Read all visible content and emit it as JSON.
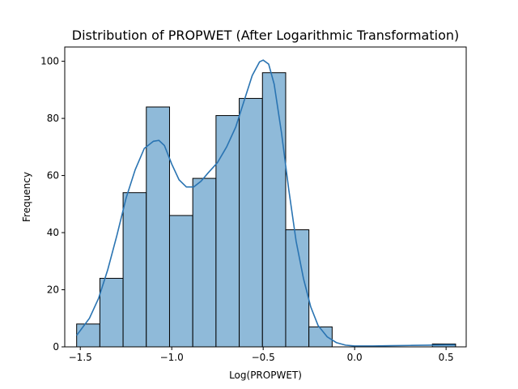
{
  "chart_data": {
    "type": "histogram",
    "title": "Distribution of PROPWET (After Logarithmic Transformation)",
    "xlabel": "Log(PROPWET)",
    "ylabel": "Frequency",
    "xlim": [
      -1.585,
      0.61
    ],
    "ylim": [
      0,
      105
    ],
    "x_ticks": [
      -1.5,
      -1.0,
      -0.5,
      0.0,
      0.5
    ],
    "x_tick_labels": [
      "−1.5",
      "−1.0",
      "−0.5",
      "0.0",
      "0.5"
    ],
    "y_ticks": [
      0,
      20,
      40,
      60,
      80,
      100
    ],
    "y_tick_labels": [
      "0",
      "20",
      "40",
      "60",
      "80",
      "100"
    ],
    "bins": [
      {
        "x0": -1.52,
        "x1": -1.393,
        "count": 8
      },
      {
        "x0": -1.393,
        "x1": -1.266,
        "count": 24
      },
      {
        "x0": -1.266,
        "x1": -1.139,
        "count": 54
      },
      {
        "x0": -1.139,
        "x1": -1.012,
        "count": 84
      },
      {
        "x0": -1.012,
        "x1": -0.885,
        "count": 46
      },
      {
        "x0": -0.885,
        "x1": -0.758,
        "count": 59
      },
      {
        "x0": -0.758,
        "x1": -0.631,
        "count": 81
      },
      {
        "x0": -0.631,
        "x1": -0.504,
        "count": 87
      },
      {
        "x0": -0.504,
        "x1": -0.377,
        "count": 96
      },
      {
        "x0": -0.377,
        "x1": -0.25,
        "count": 41
      },
      {
        "x0": -0.25,
        "x1": -0.123,
        "count": 7
      },
      {
        "x0": 0.425,
        "x1": 0.552,
        "count": 1
      }
    ],
    "kde": {
      "x": [
        -1.52,
        -1.45,
        -1.4,
        -1.35,
        -1.3,
        -1.25,
        -1.2,
        -1.15,
        -1.1,
        -1.07,
        -1.04,
        -1.0,
        -0.96,
        -0.92,
        -0.88,
        -0.84,
        -0.8,
        -0.75,
        -0.7,
        -0.65,
        -0.6,
        -0.56,
        -0.52,
        -0.5,
        -0.47,
        -0.44,
        -0.4,
        -0.36,
        -0.32,
        -0.28,
        -0.24,
        -0.2,
        -0.15,
        -0.1,
        -0.05,
        0.0,
        0.1,
        0.2,
        0.3,
        0.4,
        0.5,
        0.55
      ],
      "y": [
        4,
        10,
        17,
        27,
        39,
        52,
        62,
        69.5,
        72,
        72.3,
        70.5,
        64,
        58.5,
        56,
        56,
        58,
        61,
        64.5,
        70,
        77,
        87,
        95,
        99.8,
        100.4,
        99,
        92,
        75,
        55,
        37,
        24,
        14,
        7.5,
        3.5,
        1.5,
        0.6,
        0.3,
        0.3,
        0.4,
        0.5,
        0.6,
        0.7,
        0.7
      ]
    },
    "bar_fill": "#8fbad9",
    "bar_edge": "#000000",
    "kde_color": "#2a74b2"
  }
}
